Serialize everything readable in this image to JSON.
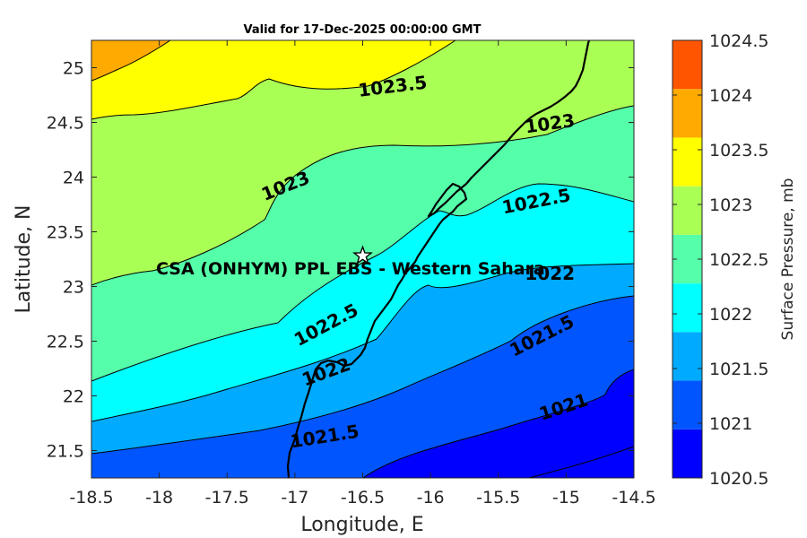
{
  "title": "Valid for 17-Dec-2025 00:00:00 GMT",
  "site_label": "CSA (ONHYM) PPL EBS  - Western Sahara",
  "chart_data": {
    "type": "contourf",
    "xlabel": "Longitude, E",
    "ylabel": "Latitude, N",
    "xlim": [
      -18.5,
      -14.5
    ],
    "ylim": [
      21.25,
      25.25
    ],
    "xticks": [
      "-18.5",
      "-18",
      "-17.5",
      "-17",
      "-16.5",
      "-16",
      "-15.5",
      "-15",
      "-14.5"
    ],
    "yticks": [
      "21.5",
      "22",
      "22.5",
      "23",
      "23.5",
      "24",
      "24.5",
      "25"
    ],
    "site": {
      "lon": -16.5,
      "lat": 23.28
    },
    "colorbar": {
      "label": "Surface Pressure, mb",
      "ticks": [
        "1020.5",
        "1021",
        "1021.5",
        "1022",
        "1022.5",
        "1023",
        "1023.5",
        "1024",
        "1024.5"
      ],
      "colors": [
        "#0000ff",
        "#0055ff",
        "#00aaff",
        "#00ffff",
        "#55ffaa",
        "#aaff55",
        "#ffff00",
        "#ffaa00",
        "#ff5500"
      ]
    },
    "contour_labels": [
      {
        "text": "1023.5",
        "lon": -16.28,
        "lat": 24.83,
        "angle": -7
      },
      {
        "text": "1023",
        "lon": -15.12,
        "lat": 24.49,
        "angle": -8
      },
      {
        "text": "1023",
        "lon": -17.07,
        "lat": 23.92,
        "angle": -22
      },
      {
        "text": "1022.5",
        "lon": -15.22,
        "lat": 23.78,
        "angle": -11
      },
      {
        "text": "1022",
        "lon": -15.12,
        "lat": 23.12,
        "angle": 0
      },
      {
        "text": "1022.5",
        "lon": -16.77,
        "lat": 22.65,
        "angle": -28
      },
      {
        "text": "1021.5",
        "lon": -15.18,
        "lat": 22.55,
        "angle": -27
      },
      {
        "text": "1022",
        "lon": -16.77,
        "lat": 22.22,
        "angle": -20
      },
      {
        "text": "1021.5",
        "lon": -16.78,
        "lat": 21.63,
        "angle": -9
      },
      {
        "text": "1021",
        "lon": -15.02,
        "lat": 21.9,
        "angle": -18
      }
    ]
  }
}
